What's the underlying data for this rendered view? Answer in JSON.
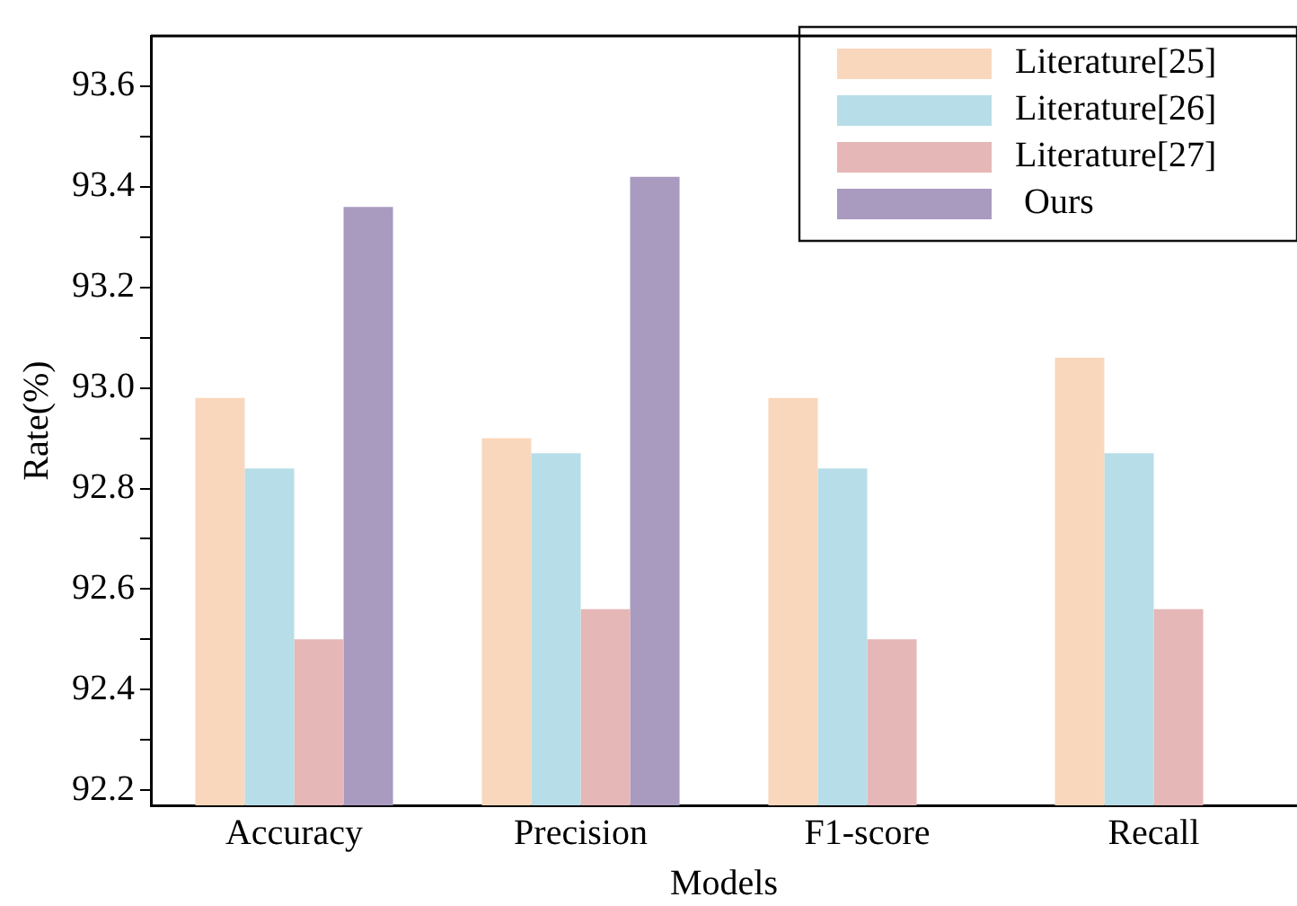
{
  "chart_data": {
    "type": "bar",
    "xlabel": "Models",
    "ylabel": "Rate(%)",
    "categories": [
      "Accuracy",
      "Precision",
      "F1-score",
      "Recall"
    ],
    "series": [
      {
        "name": "Literature[25]",
        "color": "#f9d7bc",
        "values": [
          92.98,
          92.9,
          92.98,
          93.06
        ]
      },
      {
        "name": "Literature[26]",
        "color": "#b7dde8",
        "values": [
          92.84,
          92.87,
          92.84,
          92.87
        ]
      },
      {
        "name": "Literature[27]",
        "color": "#e5b7b6",
        "values": [
          92.5,
          92.56,
          92.5,
          92.56
        ]
      },
      {
        "name": " Ours",
        "color": "#a99ac0",
        "values": [
          93.36,
          93.42,
          null,
          null
        ]
      }
    ],
    "ylim": [
      92.17,
      93.7
    ],
    "yticks": [
      92.2,
      {
        "value": 92.3,
        "label": null
      },
      92.4,
      {
        "value": 92.5,
        "label": null
      },
      92.6,
      {
        "value": 92.7,
        "label": null
      },
      92.8,
      {
        "value": 92.9,
        "label": null
      },
      {
        "value": 93.0,
        "label": "93.0"
      },
      {
        "value": 93.1,
        "label": null
      },
      93.2,
      {
        "value": 93.3,
        "label": null
      },
      93.4,
      {
        "value": 93.5,
        "label": null
      },
      93.6
    ],
    "grid": false,
    "legend": "top right"
  }
}
